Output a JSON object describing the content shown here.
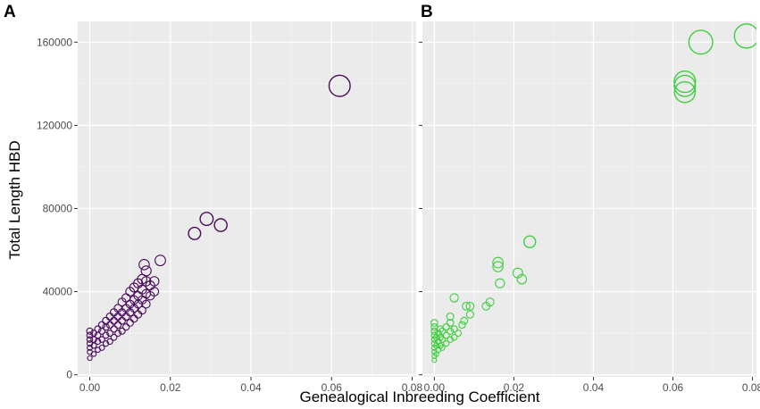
{
  "chart_data": {
    "type": "scatter",
    "xlabel": "Genealogical Inbreeding Coefficient",
    "ylabel": "Total Length HBD",
    "xlim": [
      -0.003,
      0.081
    ],
    "ylim": [
      -1000,
      170000
    ],
    "x_ticks": [
      0.0,
      0.02,
      0.04,
      0.06,
      0.08
    ],
    "x_tick_labels": [
      "0.00",
      "0.02",
      "0.04",
      "0.06",
      "0.08"
    ],
    "y_ticks": [
      0,
      40000,
      80000,
      120000,
      160000
    ],
    "y_tick_labels": [
      "0",
      "40000",
      "80000",
      "120000",
      "160000"
    ],
    "grid": true,
    "marker": "open-circle",
    "marker_size_encodes": "Total Length HBD",
    "panels": [
      {
        "label": "A",
        "color": "#4b0a5c",
        "show_y_tick_labels": true,
        "points": [
          [
            0.0,
            8000
          ],
          [
            0.0,
            11000
          ],
          [
            0.0,
            13000
          ],
          [
            0.0,
            15000
          ],
          [
            0.0,
            17000
          ],
          [
            0.0,
            19000
          ],
          [
            0.0,
            21000
          ],
          [
            0.001,
            10000
          ],
          [
            0.001,
            14000
          ],
          [
            0.001,
            17000
          ],
          [
            0.001,
            20000
          ],
          [
            0.002,
            12000
          ],
          [
            0.002,
            16000
          ],
          [
            0.002,
            19000
          ],
          [
            0.002,
            22000
          ],
          [
            0.003,
            13000
          ],
          [
            0.003,
            17000
          ],
          [
            0.003,
            21000
          ],
          [
            0.003,
            24000
          ],
          [
            0.004,
            15000
          ],
          [
            0.004,
            19000
          ],
          [
            0.004,
            23000
          ],
          [
            0.004,
            26000
          ],
          [
            0.005,
            16000
          ],
          [
            0.005,
            20000
          ],
          [
            0.005,
            24000
          ],
          [
            0.005,
            28000
          ],
          [
            0.006,
            18000
          ],
          [
            0.006,
            22000
          ],
          [
            0.006,
            26000
          ],
          [
            0.006,
            30000
          ],
          [
            0.007,
            20000
          ],
          [
            0.007,
            24000
          ],
          [
            0.007,
            28000
          ],
          [
            0.007,
            32000
          ],
          [
            0.008,
            21000
          ],
          [
            0.008,
            26000
          ],
          [
            0.008,
            30000
          ],
          [
            0.008,
            35000
          ],
          [
            0.009,
            23000
          ],
          [
            0.009,
            28000
          ],
          [
            0.009,
            32000
          ],
          [
            0.009,
            37000
          ],
          [
            0.01,
            25000
          ],
          [
            0.01,
            30000
          ],
          [
            0.01,
            34000
          ],
          [
            0.01,
            40000
          ],
          [
            0.011,
            27000
          ],
          [
            0.011,
            32000
          ],
          [
            0.011,
            36000
          ],
          [
            0.011,
            42000
          ],
          [
            0.012,
            29000
          ],
          [
            0.012,
            34000
          ],
          [
            0.012,
            38000
          ],
          [
            0.012,
            44000
          ],
          [
            0.013,
            31000
          ],
          [
            0.013,
            36000
          ],
          [
            0.013,
            41000
          ],
          [
            0.013,
            46000
          ],
          [
            0.014,
            34000
          ],
          [
            0.014,
            39000
          ],
          [
            0.014,
            45000
          ],
          [
            0.014,
            50000
          ],
          [
            0.0135,
            53000
          ],
          [
            0.015,
            38000
          ],
          [
            0.015,
            43000
          ],
          [
            0.016,
            40000
          ],
          [
            0.016,
            45000
          ],
          [
            0.0175,
            55000
          ],
          [
            0.026,
            68000
          ],
          [
            0.029,
            75000
          ],
          [
            0.0325,
            72000
          ],
          [
            0.062,
            139000
          ]
        ]
      },
      {
        "label": "B",
        "color": "#3ecf3e",
        "show_y_tick_labels": false,
        "points": [
          [
            0.0,
            7000
          ],
          [
            0.0,
            9000
          ],
          [
            0.0,
            11000
          ],
          [
            0.0,
            13000
          ],
          [
            0.0,
            15000
          ],
          [
            0.0,
            17000
          ],
          [
            0.0,
            19000
          ],
          [
            0.0,
            21000
          ],
          [
            0.0,
            23000
          ],
          [
            0.0,
            25000
          ],
          [
            0.0005,
            10000
          ],
          [
            0.0005,
            14000
          ],
          [
            0.0005,
            18000
          ],
          [
            0.001,
            12000
          ],
          [
            0.001,
            16000
          ],
          [
            0.001,
            20000
          ],
          [
            0.0015,
            14000
          ],
          [
            0.0015,
            18000
          ],
          [
            0.0015,
            22000
          ],
          [
            0.002,
            13000
          ],
          [
            0.002,
            17000
          ],
          [
            0.002,
            21000
          ],
          [
            0.003,
            15000
          ],
          [
            0.003,
            19000
          ],
          [
            0.003,
            23000
          ],
          [
            0.004,
            17000
          ],
          [
            0.004,
            21000
          ],
          [
            0.004,
            25000
          ],
          [
            0.004,
            28000
          ],
          [
            0.005,
            18000
          ],
          [
            0.005,
            22000
          ],
          [
            0.005,
            37000
          ],
          [
            0.006,
            20000
          ],
          [
            0.007,
            24000
          ],
          [
            0.0075,
            26000
          ],
          [
            0.008,
            33000
          ],
          [
            0.009,
            29000
          ],
          [
            0.009,
            33000
          ],
          [
            0.013,
            33000
          ],
          [
            0.014,
            35000
          ],
          [
            0.016,
            52000
          ],
          [
            0.016,
            54000
          ],
          [
            0.0165,
            44000
          ],
          [
            0.021,
            49000
          ],
          [
            0.022,
            46000
          ],
          [
            0.024,
            64000
          ],
          [
            0.063,
            136000
          ],
          [
            0.063,
            139000
          ],
          [
            0.063,
            141000
          ],
          [
            0.067,
            160000
          ],
          [
            0.0785,
            163000
          ]
        ]
      }
    ]
  }
}
